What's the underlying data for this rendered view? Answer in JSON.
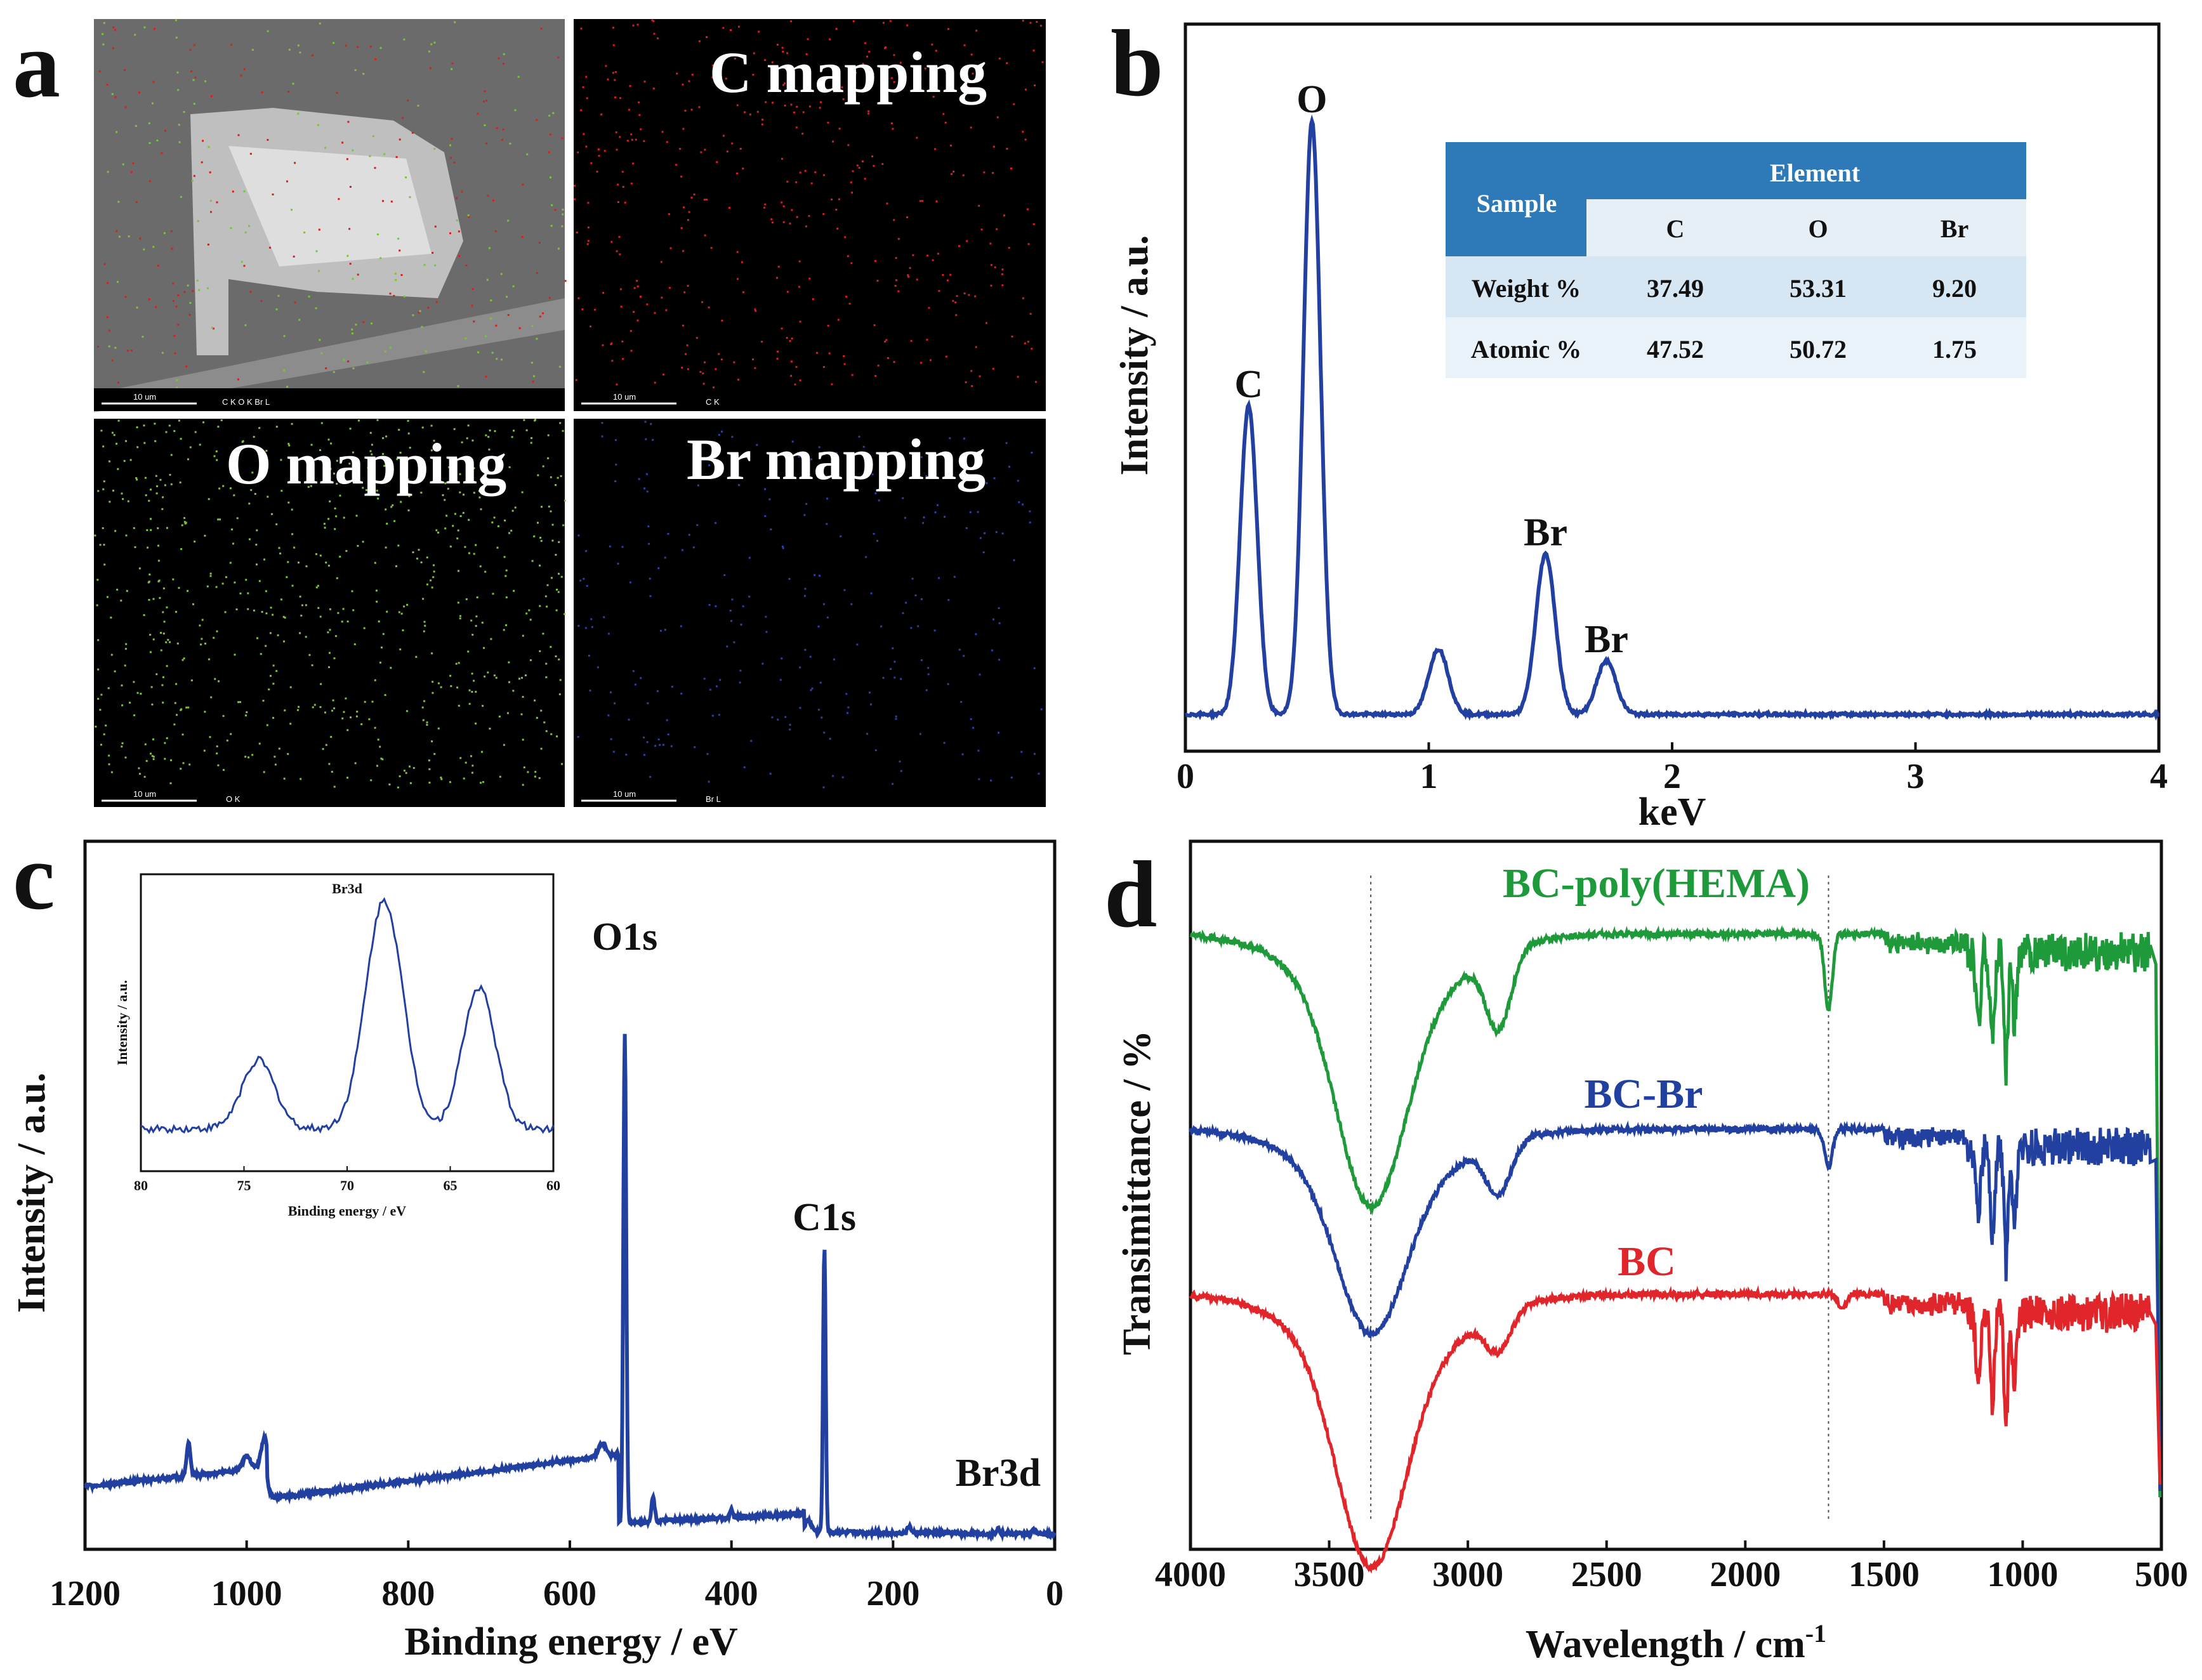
{
  "panels": {
    "a": {
      "letter": "a",
      "maps": [
        {
          "title": "",
          "scale_label": "10 um",
          "element_label": "C K  O K  Br L",
          "bg": "#6e6e6e"
        },
        {
          "title": "C mapping",
          "scale_label": "10 um",
          "element_label": "C K",
          "bg": "#000000",
          "dot_color": "#d42020"
        },
        {
          "title": "O mapping",
          "scale_label": "10 um",
          "element_label": "O K",
          "bg": "#000000",
          "dot_color": "#7fc040"
        },
        {
          "title": "Br mapping",
          "scale_label": "10 um",
          "element_label": "Br L",
          "bg": "#000000",
          "dot_color": "#3040a0"
        }
      ]
    },
    "b": {
      "letter": "b"
    },
    "c": {
      "letter": "c"
    },
    "d": {
      "letter": "d"
    }
  },
  "colors": {
    "blue": "#2140a0",
    "green": "#1e9a3a",
    "red": "#e0262a",
    "table_header": "#2e79b8",
    "table_row_alt": "#d6e6f3"
  },
  "chart_data": [
    {
      "id": "b",
      "type": "line",
      "title": "",
      "xlabel": "keV",
      "ylabel": "Intensity / a.u.",
      "xlim": [
        0,
        4
      ],
      "ylim": [
        0,
        100
      ],
      "xticks": [
        0,
        1,
        2,
        3,
        4
      ],
      "grid": false,
      "peaks": [
        {
          "x": 0.26,
          "y": 52,
          "label": "C"
        },
        {
          "x": 0.52,
          "y": 100,
          "label": "O"
        },
        {
          "x": 1.04,
          "y": 11,
          "label": ""
        },
        {
          "x": 1.48,
          "y": 27,
          "label": "Br"
        },
        {
          "x": 1.73,
          "y": 9,
          "label": "Br"
        }
      ],
      "baseline": 1.5,
      "table": {
        "header_sample": "Sample",
        "header_element": "Element",
        "columns": [
          "C",
          "O",
          "Br"
        ],
        "rows": [
          {
            "label": "Weight %",
            "values": [
              "37.49",
              "53.31",
              "9.20"
            ]
          },
          {
            "label": "Atomic %",
            "values": [
              "47.52",
              "50.72",
              "1.75"
            ]
          }
        ]
      }
    },
    {
      "id": "c",
      "type": "line",
      "title": "",
      "xlabel": "Binding energy / eV",
      "ylabel": "Intensity / a.u.",
      "xlim": [
        1200,
        0
      ],
      "ylim": [
        0,
        100
      ],
      "xticks": [
        1200,
        1000,
        800,
        600,
        400,
        200,
        0
      ],
      "grid": false,
      "peak_labels": [
        {
          "x": 532,
          "y": 93,
          "label": "O1s"
        },
        {
          "x": 285,
          "y": 47,
          "label": "C1s"
        },
        {
          "x": 70,
          "y": 5,
          "label": "Br3d"
        }
      ],
      "inset": {
        "title": "Br3d",
        "xlabel": "Binding energy / eV",
        "ylabel": "Intensity / a.u.",
        "xlim": [
          80,
          60
        ],
        "xticks": [
          80,
          75,
          70,
          65,
          60
        ],
        "peaks": [
          {
            "x": 74.3,
            "y": 30
          },
          {
            "x": 68.2,
            "y": 100
          },
          {
            "x": 63.6,
            "y": 62
          }
        ]
      }
    },
    {
      "id": "d",
      "type": "line",
      "title": "",
      "xlabel": "Wavelength / cm-1",
      "ylabel": "Transimittance / %",
      "xlim": [
        4000,
        500
      ],
      "xticks": [
        4000,
        3500,
        3000,
        2500,
        2000,
        1500,
        1000,
        500
      ],
      "grid": false,
      "reference_lines": [
        3350,
        1700
      ],
      "series": [
        {
          "name": "BC-poly(HEMA)",
          "color": "#1e9a3a",
          "offset": 3,
          "dips": [
            {
              "x": 3350,
              "depth": 8
            },
            {
              "x": 2890,
              "depth": 3
            },
            {
              "x": 1700,
              "depth": 3
            }
          ]
        },
        {
          "name": "BC-Br",
          "color": "#2140a0",
          "offset": 2,
          "dips": [
            {
              "x": 3350,
              "depth": 6
            },
            {
              "x": 2890,
              "depth": 2
            },
            {
              "x": 1700,
              "depth": 1.5
            }
          ]
        },
        {
          "name": "BC",
          "color": "#e0262a",
          "offset": 1,
          "dips": [
            {
              "x": 3350,
              "depth": 8
            },
            {
              "x": 2890,
              "depth": 1.5
            },
            {
              "x": 1650,
              "depth": 0.6
            }
          ]
        }
      ]
    }
  ]
}
